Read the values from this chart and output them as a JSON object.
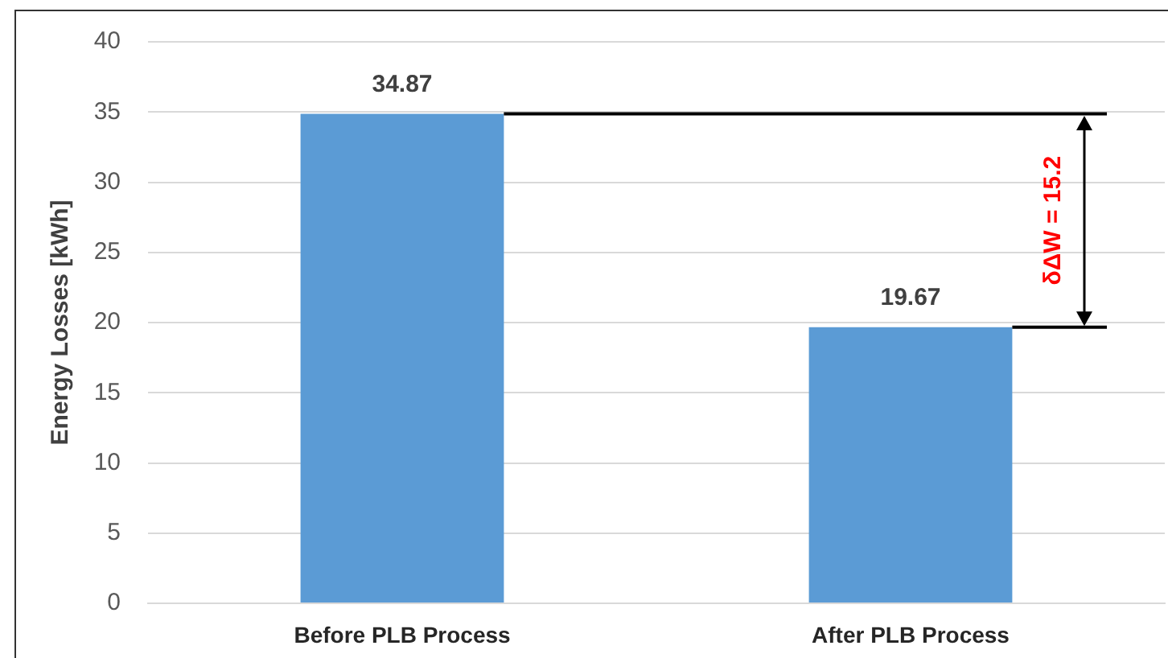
{
  "chart_data": {
    "type": "bar",
    "categories": [
      "Before PLB Process",
      "After PLB Process"
    ],
    "values": [
      34.87,
      19.67
    ],
    "color": "#5b9bd5",
    "ylabel": "Energy Losses [kWh]",
    "ylim": [
      0,
      40
    ],
    "yticks": [
      0,
      5,
      10,
      15,
      20,
      25,
      30,
      35,
      40
    ],
    "grid": "y",
    "data_labels": true,
    "ref_lines": [
      {
        "axis": "y",
        "value": 34.87,
        "color": "#000000"
      },
      {
        "axis": "y",
        "value": 19.67,
        "color": "#000000"
      }
    ],
    "annotations": [
      "δΔW = 15.2"
    ]
  }
}
